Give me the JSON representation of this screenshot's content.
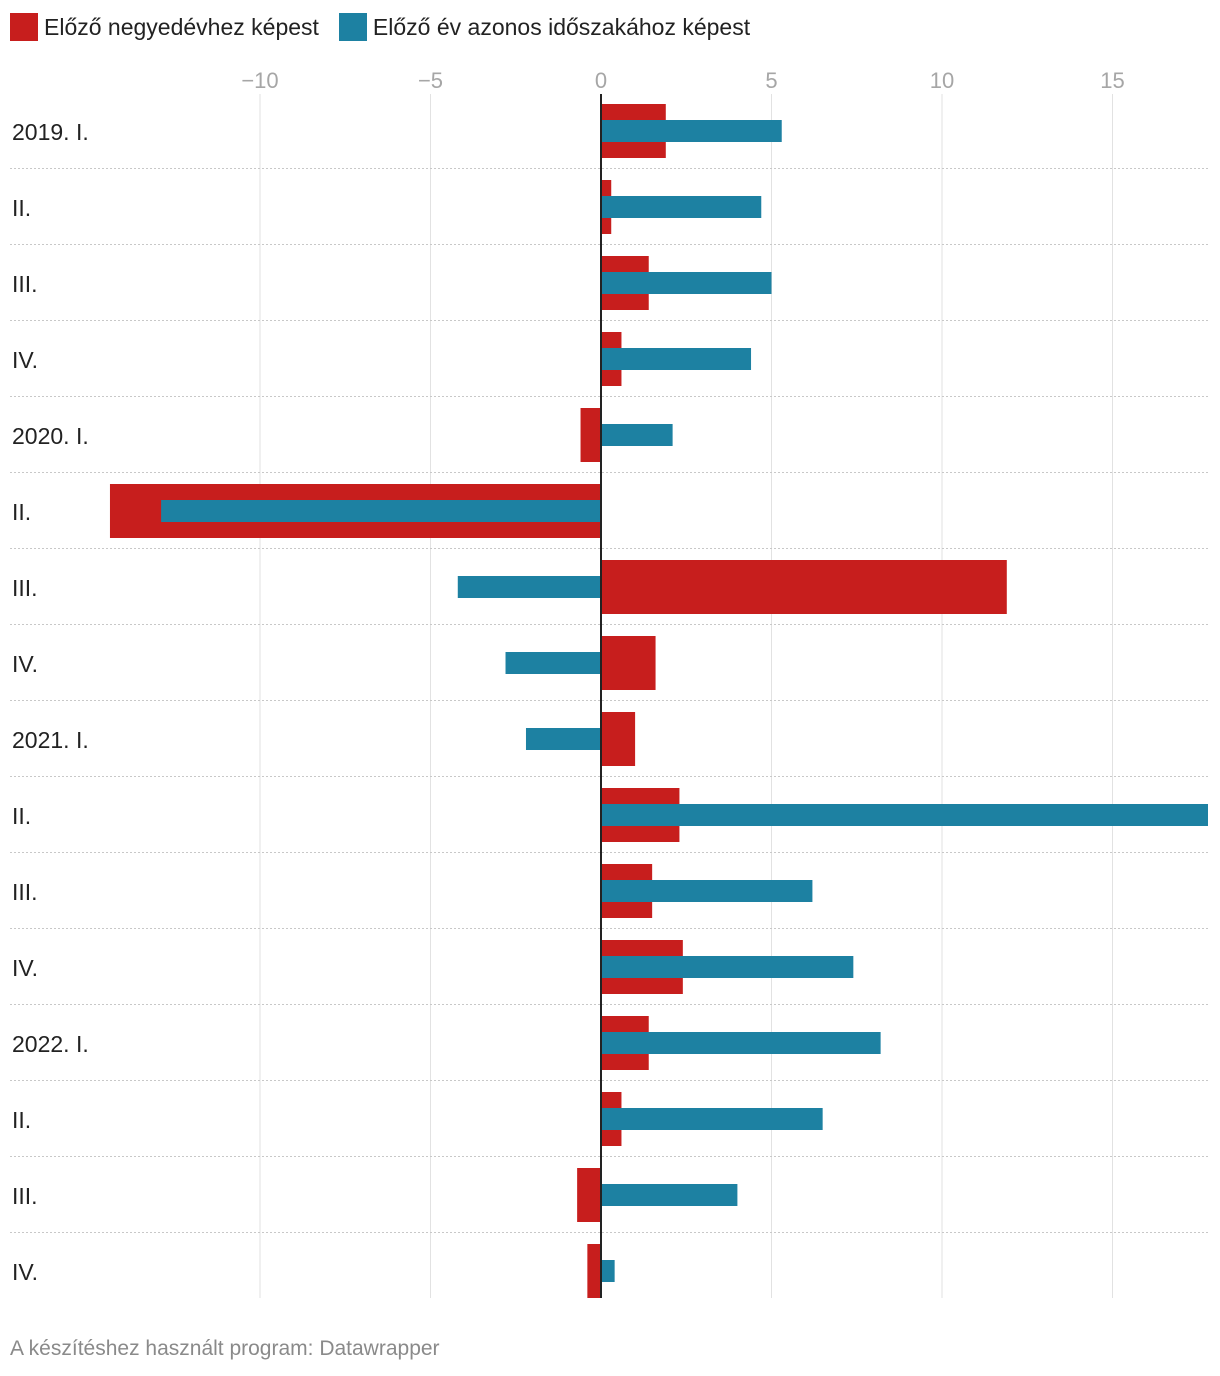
{
  "legend": {
    "items": [
      {
        "label": "Előző negyedévhez képest",
        "color": "#c71e1d"
      },
      {
        "label": "Előző év azonos időszakához képest",
        "color": "#1d81a2"
      }
    ]
  },
  "footer": {
    "source_text": "A készítéshez használt program: Datawrapper"
  },
  "chart_data": {
    "type": "bar",
    "orientation": "horizontal",
    "categories": [
      "2019. I.",
      "II.",
      "III.",
      "IV.",
      "2020. I.",
      "II.",
      "III.",
      "IV.",
      "2021. I.",
      "II.",
      "III.",
      "IV.",
      "2022. I.",
      "II.",
      "III.",
      "IV."
    ],
    "series": [
      {
        "name": "Előző negyedévhez képest",
        "color": "#c71e1d",
        "values": [
          1.9,
          0.3,
          1.4,
          0.6,
          -0.6,
          -14.4,
          11.9,
          1.6,
          1.0,
          2.3,
          1.5,
          2.4,
          1.4,
          0.6,
          -0.7,
          -0.4
        ]
      },
      {
        "name": "Előző év azonos időszakához képest",
        "color": "#1d81a2",
        "values": [
          5.3,
          4.7,
          5.0,
          4.4,
          2.1,
          -12.9,
          -4.2,
          -2.8,
          -2.2,
          17.9,
          6.2,
          7.4,
          8.2,
          6.5,
          4.0,
          0.4
        ]
      }
    ],
    "xlim": [
      -17.6,
      17.8
    ],
    "xticks": [
      -10,
      -5,
      0,
      5,
      10,
      15
    ],
    "xtick_labels": [
      "−10",
      "−5",
      "0",
      "5",
      "10",
      "15"
    ],
    "grid": true,
    "legend_position": "top-left"
  }
}
